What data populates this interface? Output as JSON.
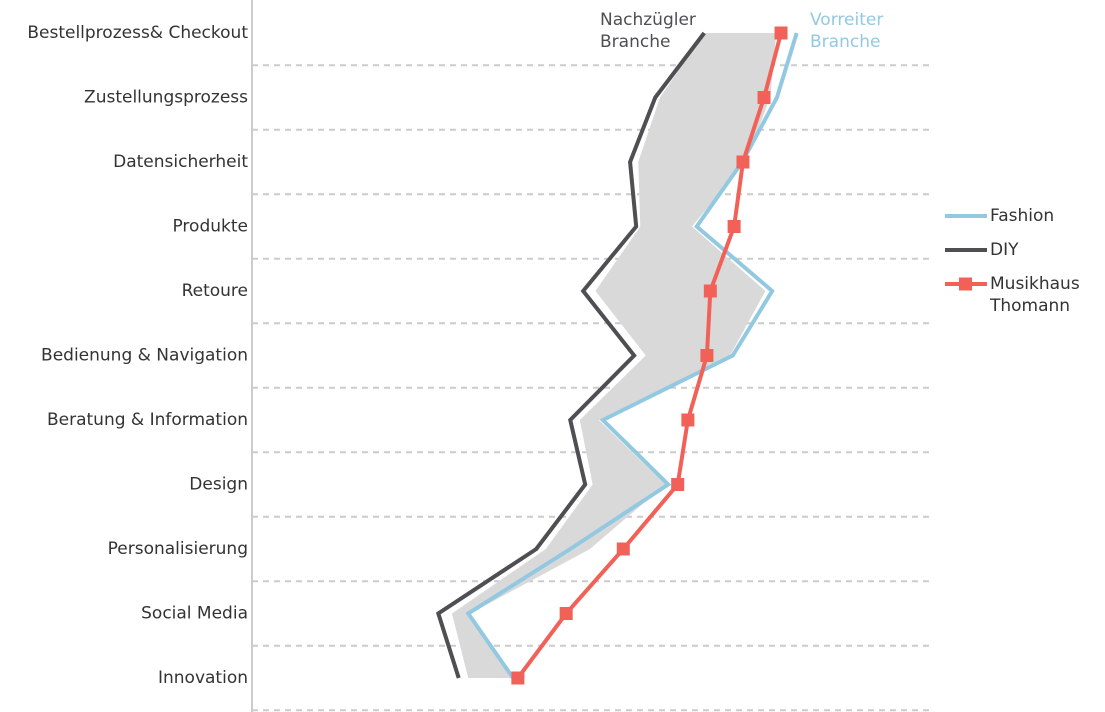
{
  "chart_data": {
    "type": "line",
    "orientation": "vertical-categories",
    "categories": [
      "Bestellprozess& Checkout",
      "Zustellungsprozess",
      "Datensicherheit",
      "Produkte",
      "Retoure",
      "Bedienung & Navigation",
      "Beratung & Information",
      "Design",
      "Personalisierung",
      "Social Media",
      "Innovation"
    ],
    "xlim": [
      0,
      100
    ],
    "band": {
      "color": "#d9d9d9",
      "low": [
        66.5,
        60.0,
        56.8,
        57.1,
        50.5,
        57.9,
        48.2,
        50.1,
        43.2,
        29.4,
        31.8
      ],
      "high": [
        77.1,
        76.2,
        72.6,
        64.7,
        75.5,
        70.3,
        51.0,
        60.8,
        49.7,
        32.1,
        38.4
      ]
    },
    "series": [
      {
        "name": "Fashion",
        "color": "#92c9e1",
        "marker": "none",
        "values": [
          80.1,
          77.2,
          72.1,
          65.4,
          76.5,
          70.7,
          51.6,
          61.2,
          46.8,
          31.8,
          38.4
        ]
      },
      {
        "name": "DIY",
        "color": "#4d4f53",
        "marker": "none",
        "values": [
          66.5,
          59.3,
          55.6,
          56.5,
          48.7,
          56.2,
          46.8,
          49.0,
          41.8,
          27.4,
          30.4
        ]
      },
      {
        "name": "Musikhaus Thomann",
        "color": "#f26157",
        "marker": "square",
        "values": [
          77.8,
          75.3,
          72.2,
          70.9,
          67.4,
          66.9,
          64.1,
          62.6,
          54.6,
          46.2,
          39.1
        ]
      }
    ],
    "annotations": [
      {
        "lines": [
          "Nachzügler",
          "Branche"
        ],
        "color": "#4d4f53"
      },
      {
        "lines": [
          "Vorreiter",
          "Branche"
        ],
        "color": "#92c9e1"
      }
    ],
    "legend": "right",
    "grid": true
  }
}
